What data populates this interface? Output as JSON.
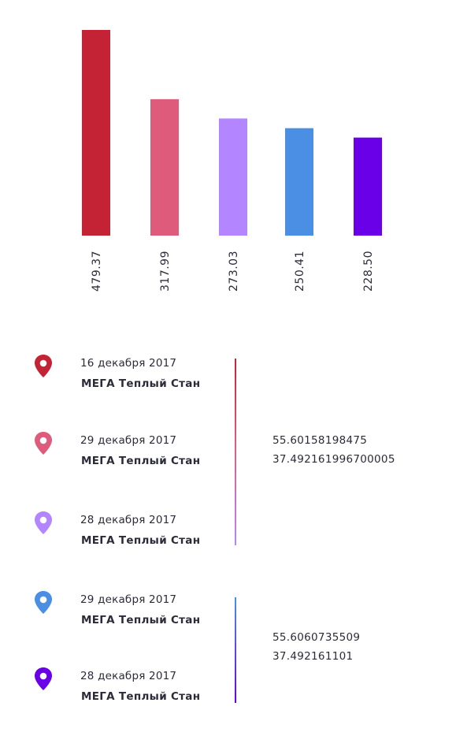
{
  "chart_data": {
    "type": "bar",
    "values": [
      479.37,
      317.99,
      273.03,
      250.41,
      228.5
    ],
    "value_labels": [
      "479.37",
      "317.99",
      "273.03",
      "250.41",
      "228.50"
    ],
    "colors": [
      "#c42336",
      "#df5b7c",
      "#b386ff",
      "#4a8fe3",
      "#6a00e8"
    ],
    "ylim": [
      0,
      479.37
    ],
    "grid": false
  },
  "visits": [
    {
      "date": "16 декабря 2017",
      "place": "МЕГА Теплый Стан",
      "color": "#c42336"
    },
    {
      "date": "29 декабря 2017",
      "place": "МЕГА Теплый Стан",
      "color": "#df5b7c"
    },
    {
      "date": "28 декабря 2017",
      "place": "МЕГА Теплый Стан",
      "color": "#b386ff"
    },
    {
      "date": "29 декабря 2017",
      "place": "МЕГА Теплый Стан",
      "color": "#4a8fe3"
    },
    {
      "date": "28 декабря 2017",
      "place": "МЕГА Теплый Стан",
      "color": "#6a00e8"
    }
  ],
  "groups": [
    {
      "lat": "55.60158198475",
      "lon": "37.492161996700005"
    },
    {
      "lat": "55.6060735509",
      "lon": "37.492161101"
    }
  ],
  "icons": {
    "pin": "map-pin-icon"
  }
}
